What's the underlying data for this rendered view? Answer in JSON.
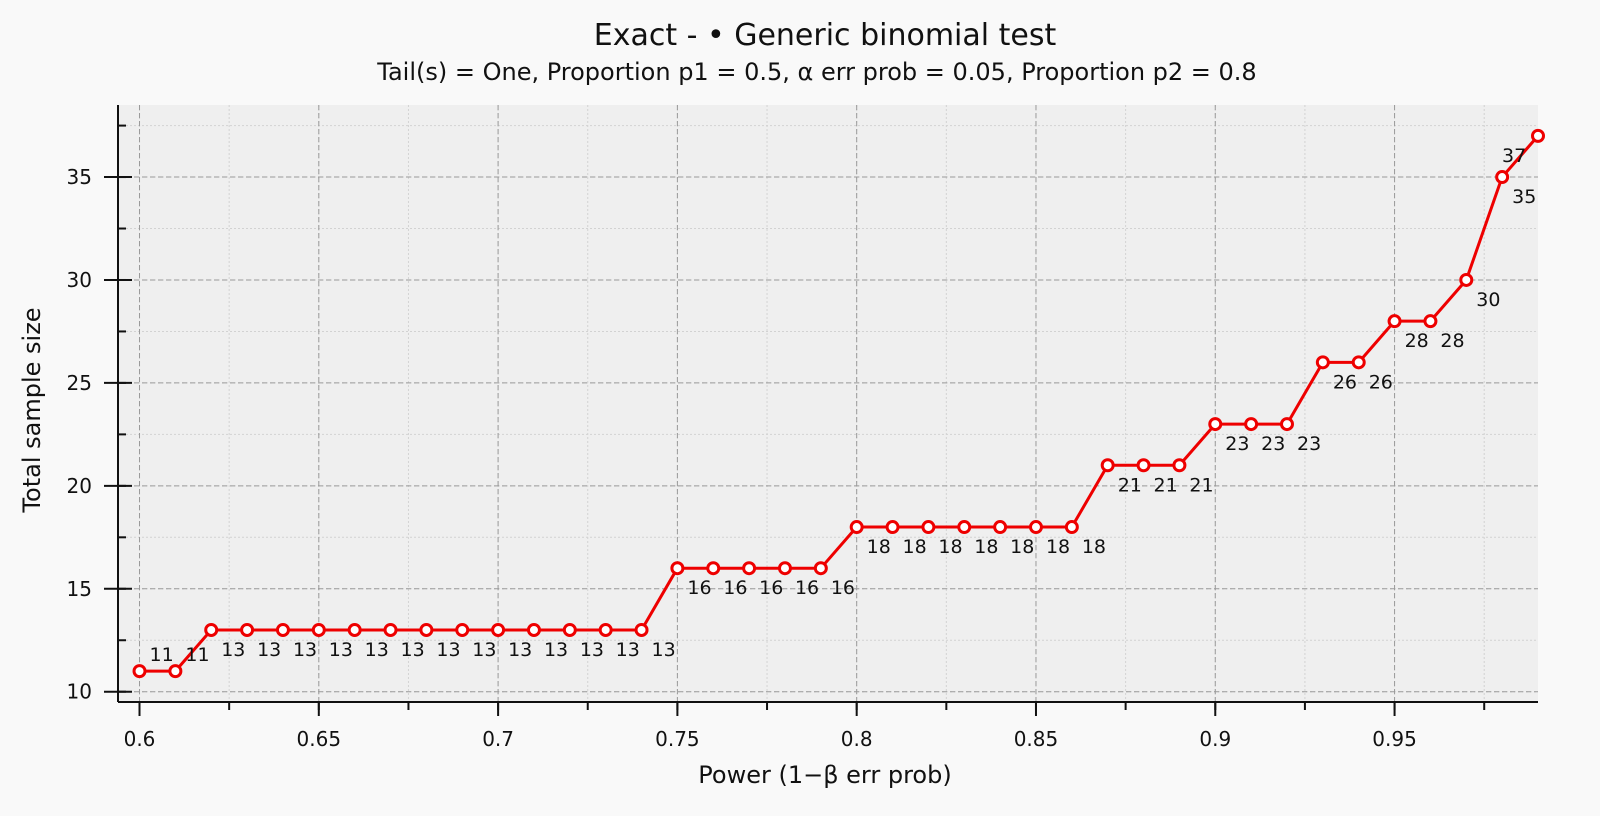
{
  "chart_data": {
    "type": "line",
    "title": "Exact - • Generic binomial test",
    "subtitle": "Tail(s) = One, Proportion p1 = 0.5, α err prob = 0.05, Proportion p2 = 0.8",
    "xlabel": "Power (1−β err prob)",
    "ylabel": "Total sample size",
    "xlim": [
      0.594,
      0.99
    ],
    "ylim": [
      9.5,
      38.5
    ],
    "x_ticks": [
      0.6,
      0.65,
      0.7,
      0.75,
      0.8,
      0.85,
      0.9,
      0.95
    ],
    "x_tick_labels": [
      "0.6",
      "0.65",
      "0.7",
      "0.75",
      "0.8",
      "0.85",
      "0.9",
      "0.95"
    ],
    "y_ticks": [
      10,
      15,
      20,
      25,
      30,
      35
    ],
    "y_tick_labels": [
      "10",
      "15",
      "20",
      "25",
      "30",
      "35"
    ],
    "grid": true,
    "line_color": "#ee0000",
    "plot_background": "#efefef",
    "x": [
      0.6,
      0.61,
      0.62,
      0.63,
      0.64,
      0.65,
      0.66,
      0.67,
      0.68,
      0.69,
      0.7,
      0.71,
      0.72,
      0.73,
      0.74,
      0.75,
      0.76,
      0.77,
      0.78,
      0.79,
      0.8,
      0.81,
      0.82,
      0.83,
      0.84,
      0.85,
      0.86,
      0.87,
      0.88,
      0.89,
      0.9,
      0.91,
      0.92,
      0.93,
      0.94,
      0.95,
      0.96,
      0.97,
      0.98,
      0.99
    ],
    "values": [
      11,
      11,
      13,
      13,
      13,
      13,
      13,
      13,
      13,
      13,
      13,
      13,
      13,
      13,
      13,
      16,
      16,
      16,
      16,
      16,
      18,
      18,
      18,
      18,
      18,
      18,
      18,
      21,
      21,
      21,
      23,
      23,
      23,
      26,
      26,
      28,
      28,
      30,
      35,
      37
    ]
  }
}
